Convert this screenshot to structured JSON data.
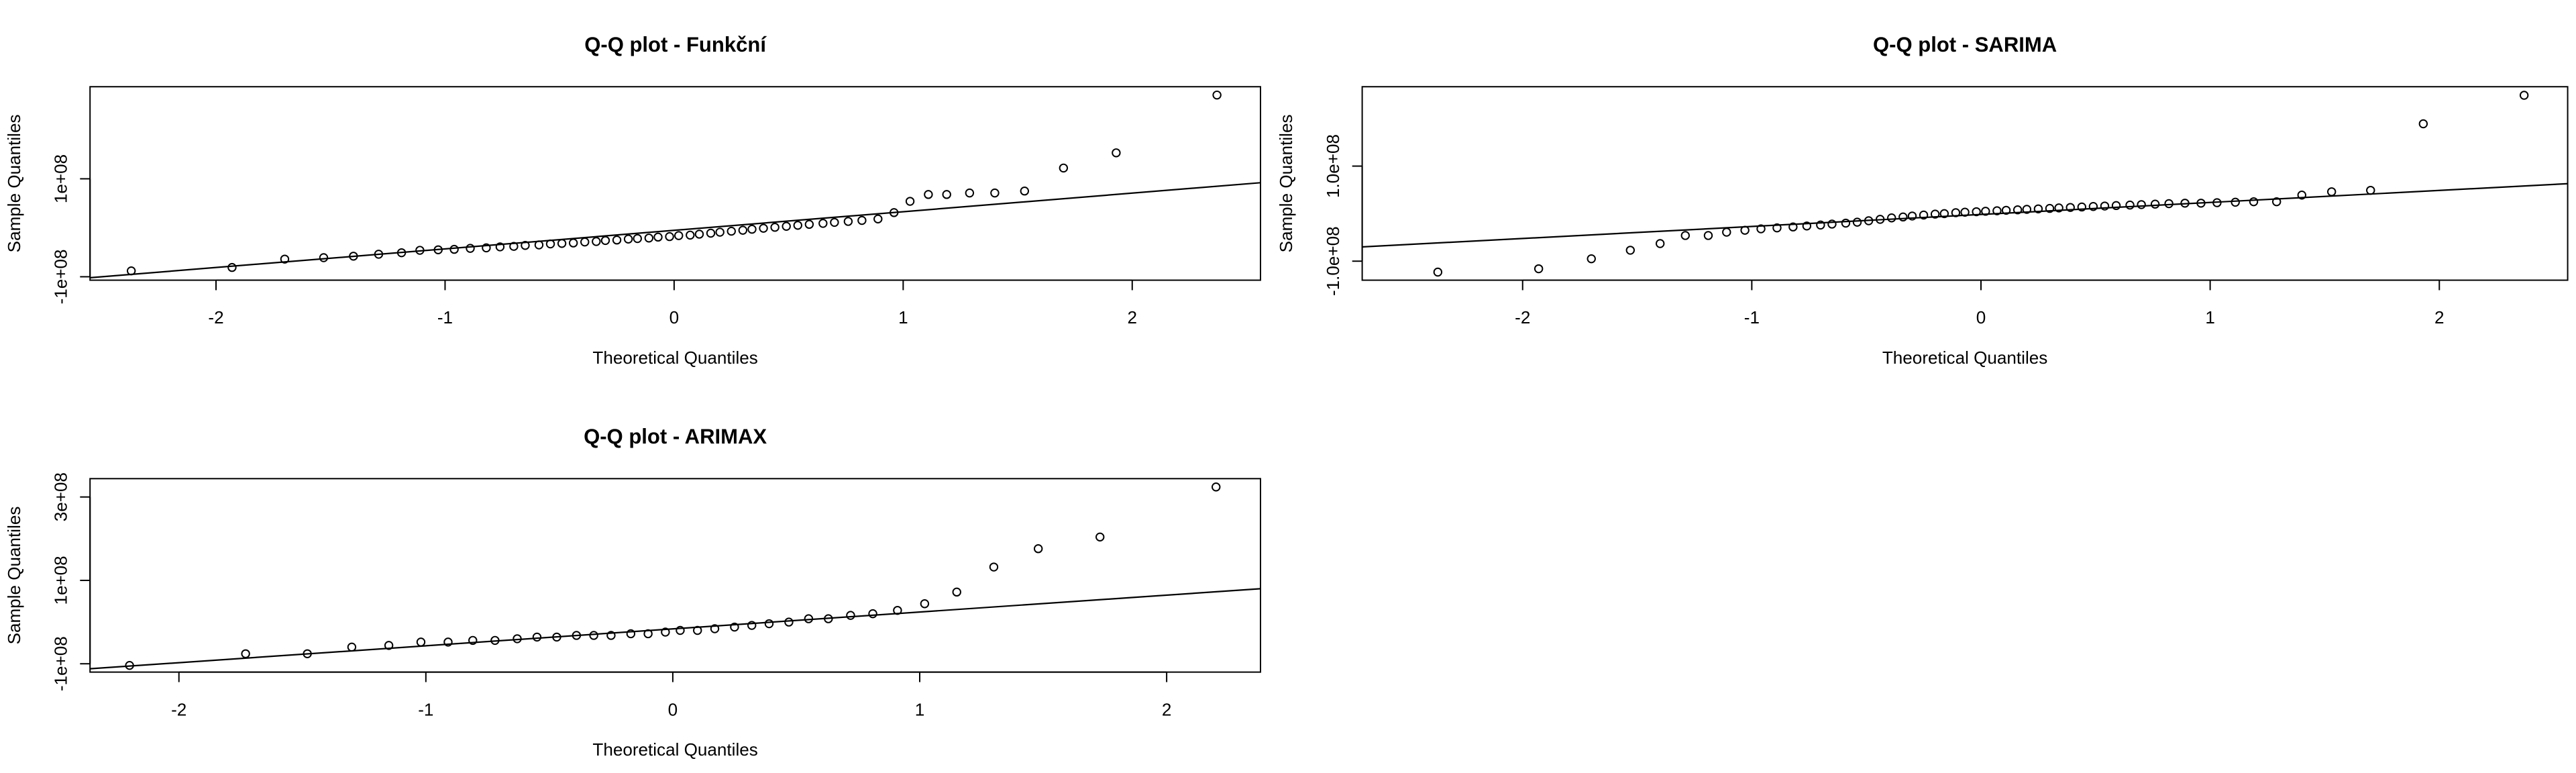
{
  "chart_data": [
    {
      "type": "scatter",
      "title": "Q-Q plot - Funkční",
      "xlabel": "Theoretical Quantiles",
      "ylabel": "Sample Quantiles",
      "xlim": [
        -2.55,
        2.56
      ],
      "ylim": [
        -107000000.0,
        288000000.0
      ],
      "xticks": [
        -2,
        -1,
        0,
        1,
        2
      ],
      "yticks": [
        {
          "value": -100000000.0,
          "label": "-1e+08"
        },
        {
          "value": 100000000.0,
          "label": "1e+08"
        }
      ],
      "x": [
        -2.37,
        -1.93,
        -1.7,
        -1.53,
        -1.4,
        -1.29,
        -1.19,
        -1.11,
        -1.03,
        -0.96,
        -0.89,
        -0.82,
        -0.76,
        -0.7,
        -0.65,
        -0.59,
        -0.54,
        -0.49,
        -0.44,
        -0.39,
        -0.34,
        -0.3,
        -0.25,
        -0.2,
        -0.16,
        -0.11,
        -0.07,
        -0.02,
        0.02,
        0.07,
        0.11,
        0.16,
        0.2,
        0.25,
        0.3,
        0.34,
        0.39,
        0.44,
        0.49,
        0.54,
        0.59,
        0.65,
        0.7,
        0.76,
        0.82,
        0.89,
        0.96,
        1.03,
        1.11,
        1.19,
        1.29,
        1.4,
        1.53,
        1.7,
        1.93,
        2.37
      ],
      "y": [
        -88000000.0,
        -81000000.0,
        -64000000.0,
        -61000000.0,
        -58000000.0,
        -54000000.0,
        -51000000.0,
        -46000000.0,
        -45000000.0,
        -44000000.0,
        -42000000.0,
        -41000000.0,
        -39000000.0,
        -38000000.0,
        -36000000.0,
        -35000000.0,
        -33000000.0,
        -32000000.0,
        -31000000.0,
        -29000000.0,
        -28000000.0,
        -26000000.0,
        -25000000.0,
        -23000000.0,
        -22000000.0,
        -21000000.0,
        -19000000.0,
        -18000000.0,
        -16000000.0,
        -15000000.0,
        -13000000.0,
        -11000000.0,
        -9000000.0,
        -7000000.0,
        -5000000.0,
        -3000000.0,
        -1000000.0,
        1000000.0,
        3000000.0,
        5000000.0,
        7000000.0,
        9000000.0,
        11000000.0,
        13000000.0,
        15000000.0,
        18000000.0,
        31000000.0,
        54000000.0,
        68000000.0,
        68000000.0,
        71000000.0,
        71000000.0,
        75000000.0,
        122000000.0,
        153000000.0,
        271000000.0
      ],
      "qq_line": {
        "x": [
          -2.55,
          2.56
        ],
        "y": [
          -102000000.0,
          92000000.0
        ]
      }
    },
    {
      "type": "scatter",
      "title": "Q-Q plot - SARIMA",
      "xlabel": "Theoretical Quantiles",
      "ylabel": "Sample Quantiles",
      "xlim": [
        -2.7,
        2.56
      ],
      "ylim": [
        -140000000.0,
        267000000.0
      ],
      "xticks": [
        -2,
        -1,
        0,
        1,
        2
      ],
      "yticks": [
        {
          "value": -100000000.0,
          "label": "-1.0e+08"
        },
        {
          "value": 100000000.0,
          "label": "1.0e+08"
        }
      ],
      "x": [
        -2.37,
        -1.93,
        -1.7,
        -1.53,
        -1.4,
        -1.29,
        -1.19,
        -1.11,
        -1.03,
        -0.96,
        -0.89,
        -0.82,
        -0.76,
        -0.7,
        -0.65,
        -0.59,
        -0.54,
        -0.49,
        -0.44,
        -0.39,
        -0.34,
        -0.3,
        -0.25,
        -0.2,
        -0.16,
        -0.11,
        -0.07,
        -0.02,
        0.02,
        0.07,
        0.11,
        0.16,
        0.2,
        0.25,
        0.3,
        0.34,
        0.39,
        0.44,
        0.49,
        0.54,
        0.59,
        0.65,
        0.7,
        0.76,
        0.82,
        0.89,
        0.96,
        1.03,
        1.11,
        1.19,
        1.29,
        1.4,
        1.53,
        1.7,
        1.93,
        2.37
      ],
      "y": [
        -123000000.0,
        -116000000.0,
        -95000000.0,
        -77000000.0,
        -63000000.0,
        -46000000.0,
        -46000000.0,
        -39000000.0,
        -35000000.0,
        -32000000.0,
        -30000000.0,
        -28000000.0,
        -26000000.0,
        -24000000.0,
        -22000000.0,
        -20000000.0,
        -18000000.0,
        -15000000.0,
        -12000000.0,
        -9000000.0,
        -7000000.0,
        -5000000.0,
        -3000000.0,
        -1000000.0,
        0.0,
        2000000.0,
        3000000.0,
        4000000.0,
        5000000.0,
        6000000.0,
        7000000.0,
        8000000.0,
        9000000.0,
        10000000.0,
        11000000.0,
        12000000.0,
        13000000.0,
        14000000.0,
        15000000.0,
        16000000.0,
        17000000.0,
        18000000.0,
        19000000.0,
        20000000.0,
        21000000.0,
        22000000.0,
        22000000.0,
        23000000.0,
        24000000.0,
        25000000.0,
        25000000.0,
        39000000.0,
        46000000.0,
        49000000.0,
        189000000.0,
        249000000.0
      ],
      "qq_line": {
        "x": [
          -2.7,
          2.56
        ],
        "y": [
          -70000000.0,
          63000000.0
        ]
      }
    },
    {
      "type": "scatter",
      "title": "Q-Q plot - ARIMAX",
      "xlabel": "Theoretical Quantiles",
      "ylabel": "Sample Quantiles",
      "xlim": [
        -2.36,
        2.38
      ],
      "ylim": [
        -120000000.0,
        344000000.0
      ],
      "xticks": [
        -2,
        -1,
        0,
        1,
        2
      ],
      "yticks": [
        {
          "value": -100000000.0,
          "label": "-1e+08"
        },
        {
          "value": 100000000.0,
          "label": "1e+08"
        },
        {
          "value": 300000000.0,
          "label": "3e+08"
        }
      ],
      "x": [
        -2.2,
        -1.73,
        -1.48,
        -1.3,
        -1.15,
        -1.02,
        -0.91,
        -0.81,
        -0.72,
        -0.63,
        -0.55,
        -0.47,
        -0.39,
        -0.32,
        -0.25,
        -0.17,
        -0.1,
        -0.03,
        0.03,
        0.1,
        0.17,
        0.25,
        0.32,
        0.39,
        0.47,
        0.55,
        0.63,
        0.72,
        0.81,
        0.91,
        1.02,
        1.15,
        1.3,
        1.48,
        1.73,
        2.2
      ],
      "y": [
        -104000000.0,
        -76000000.0,
        -76000000.0,
        -60000000.0,
        -56000000.0,
        -48000000.0,
        -48000000.0,
        -44000000.0,
        -44000000.0,
        -40000000.0,
        -36000000.0,
        -36000000.0,
        -32000000.0,
        -32000000.0,
        -32000000.0,
        -28000000.0,
        -28000000.0,
        -24000000.0,
        -20000000.0,
        -20000000.0,
        -16000000.0,
        -12000000.0,
        -8000000.0,
        -4000000.0,
        0.0,
        8000000.0,
        8000000.0,
        16000000.0,
        20000000.0,
        28000000.0,
        44000000.0,
        72000000.0,
        132000000.0,
        176000000.0,
        204000000.0,
        324000000.0
      ],
      "qq_line": {
        "x": [
          -2.36,
          2.38
        ],
        "y": [
          -112000000.0,
          80000000.0
        ]
      }
    }
  ]
}
